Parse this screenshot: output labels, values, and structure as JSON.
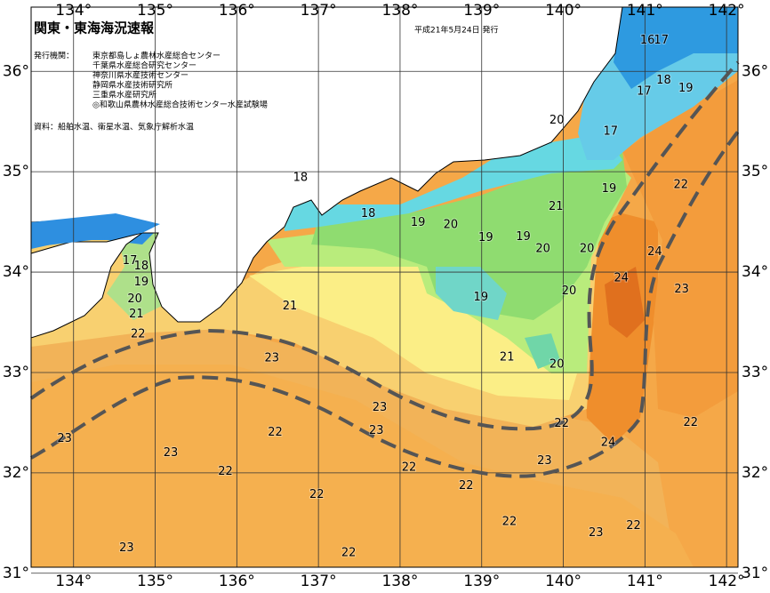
{
  "map": {
    "title": "関東・東海海況速報",
    "issue_date": "平成21年5月24日 発行",
    "publisher_heading": "発行機関：",
    "publishers": [
      "東京都島しょ農林水産総合センター",
      "千葉県水産総合研究センター",
      "神奈川県水産技術センター",
      "静岡県水産技術研究所",
      "三重県水産研究所",
      "◎和歌山県農林水産総合技術センター水産試験場"
    ],
    "sources": "資料：船舶水温、衛星水温、気象庁解析水温",
    "lon_range": [
      133.48,
      142.14
    ],
    "lat_range": [
      31.06,
      36.64
    ],
    "lon_ticks": [
      {
        "value": 134,
        "label": "134°"
      },
      {
        "value": 135,
        "label": "135°"
      },
      {
        "value": 136,
        "label": "136°"
      },
      {
        "value": 137,
        "label": "137°"
      },
      {
        "value": 138,
        "label": "138°"
      },
      {
        "value": 139,
        "label": "139°"
      },
      {
        "value": 140,
        "label": "140°"
      },
      {
        "value": 141,
        "label": "141°"
      },
      {
        "value": 142,
        "label": "142°"
      }
    ],
    "lat_ticks": [
      {
        "value": 31,
        "label": "31°"
      },
      {
        "value": 32,
        "label": "32°"
      },
      {
        "value": 33,
        "label": "33°"
      },
      {
        "value": 34,
        "label": "34°"
      },
      {
        "value": 35,
        "label": "35°"
      },
      {
        "value": 36,
        "label": "36°"
      }
    ],
    "isotherm_labels": [
      {
        "label": "16",
        "lon": 141.03,
        "lat": 36.31
      },
      {
        "label": "17",
        "lon": 141.2,
        "lat": 36.31
      },
      {
        "label": "17",
        "lon": 140.99,
        "lat": 35.8
      },
      {
        "label": "18",
        "lon": 141.23,
        "lat": 35.91
      },
      {
        "label": "19",
        "lon": 141.5,
        "lat": 35.83
      },
      {
        "label": "20",
        "lon": 139.92,
        "lat": 35.51
      },
      {
        "label": "17",
        "lon": 140.58,
        "lat": 35.4
      },
      {
        "label": "19",
        "lon": 140.56,
        "lat": 34.83
      },
      {
        "label": "22",
        "lon": 141.44,
        "lat": 34.87
      },
      {
        "label": "18",
        "lon": 136.78,
        "lat": 34.94
      },
      {
        "label": "18",
        "lon": 137.61,
        "lat": 34.58
      },
      {
        "label": "19",
        "lon": 138.22,
        "lat": 34.49
      },
      {
        "label": "20",
        "lon": 138.62,
        "lat": 34.47
      },
      {
        "label": "21",
        "lon": 139.91,
        "lat": 34.65
      },
      {
        "label": "19",
        "lon": 139.05,
        "lat": 34.34
      },
      {
        "label": "19",
        "lon": 139.51,
        "lat": 34.35
      },
      {
        "label": "20",
        "lon": 139.75,
        "lat": 34.23
      },
      {
        "label": "20",
        "lon": 140.29,
        "lat": 34.23
      },
      {
        "label": "24",
        "lon": 141.12,
        "lat": 34.2
      },
      {
        "label": "17",
        "lon": 134.69,
        "lat": 34.11
      },
      {
        "label": "18",
        "lon": 134.83,
        "lat": 34.06
      },
      {
        "label": "19",
        "lon": 134.83,
        "lat": 33.9
      },
      {
        "label": "24",
        "lon": 140.71,
        "lat": 33.94
      },
      {
        "label": "23",
        "lon": 141.45,
        "lat": 33.83
      },
      {
        "label": "20",
        "lon": 134.75,
        "lat": 33.73
      },
      {
        "label": "19",
        "lon": 138.99,
        "lat": 33.75
      },
      {
        "label": "20",
        "lon": 140.07,
        "lat": 33.81
      },
      {
        "label": "21",
        "lon": 134.77,
        "lat": 33.58
      },
      {
        "label": "21",
        "lon": 136.65,
        "lat": 33.66
      },
      {
        "label": "22",
        "lon": 134.79,
        "lat": 33.38
      },
      {
        "label": "23",
        "lon": 136.43,
        "lat": 33.14
      },
      {
        "label": "21",
        "lon": 139.31,
        "lat": 33.15
      },
      {
        "label": "20",
        "lon": 139.92,
        "lat": 33.08
      },
      {
        "label": "23",
        "lon": 137.75,
        "lat": 32.65
      },
      {
        "label": "22",
        "lon": 139.98,
        "lat": 32.49
      },
      {
        "label": "22",
        "lon": 141.56,
        "lat": 32.5
      },
      {
        "label": "23",
        "lon": 137.71,
        "lat": 32.42
      },
      {
        "label": "22",
        "lon": 136.47,
        "lat": 32.4
      },
      {
        "label": "23",
        "lon": 133.89,
        "lat": 32.34
      },
      {
        "label": "24",
        "lon": 140.55,
        "lat": 32.3
      },
      {
        "label": "23",
        "lon": 135.19,
        "lat": 32.2
      },
      {
        "label": "22",
        "lon": 138.11,
        "lat": 32.05
      },
      {
        "label": "23",
        "lon": 139.77,
        "lat": 32.12
      },
      {
        "label": "22",
        "lon": 135.86,
        "lat": 32.01
      },
      {
        "label": "22",
        "lon": 138.81,
        "lat": 31.87
      },
      {
        "label": "22",
        "lon": 136.98,
        "lat": 31.78
      },
      {
        "label": "22",
        "lon": 139.34,
        "lat": 31.51
      },
      {
        "label": "22",
        "lon": 140.86,
        "lat": 31.47
      },
      {
        "label": "23",
        "lon": 140.4,
        "lat": 31.4
      },
      {
        "label": "23",
        "lon": 134.65,
        "lat": 31.25
      },
      {
        "label": "22",
        "lon": 137.37,
        "lat": 31.2
      }
    ]
  }
}
